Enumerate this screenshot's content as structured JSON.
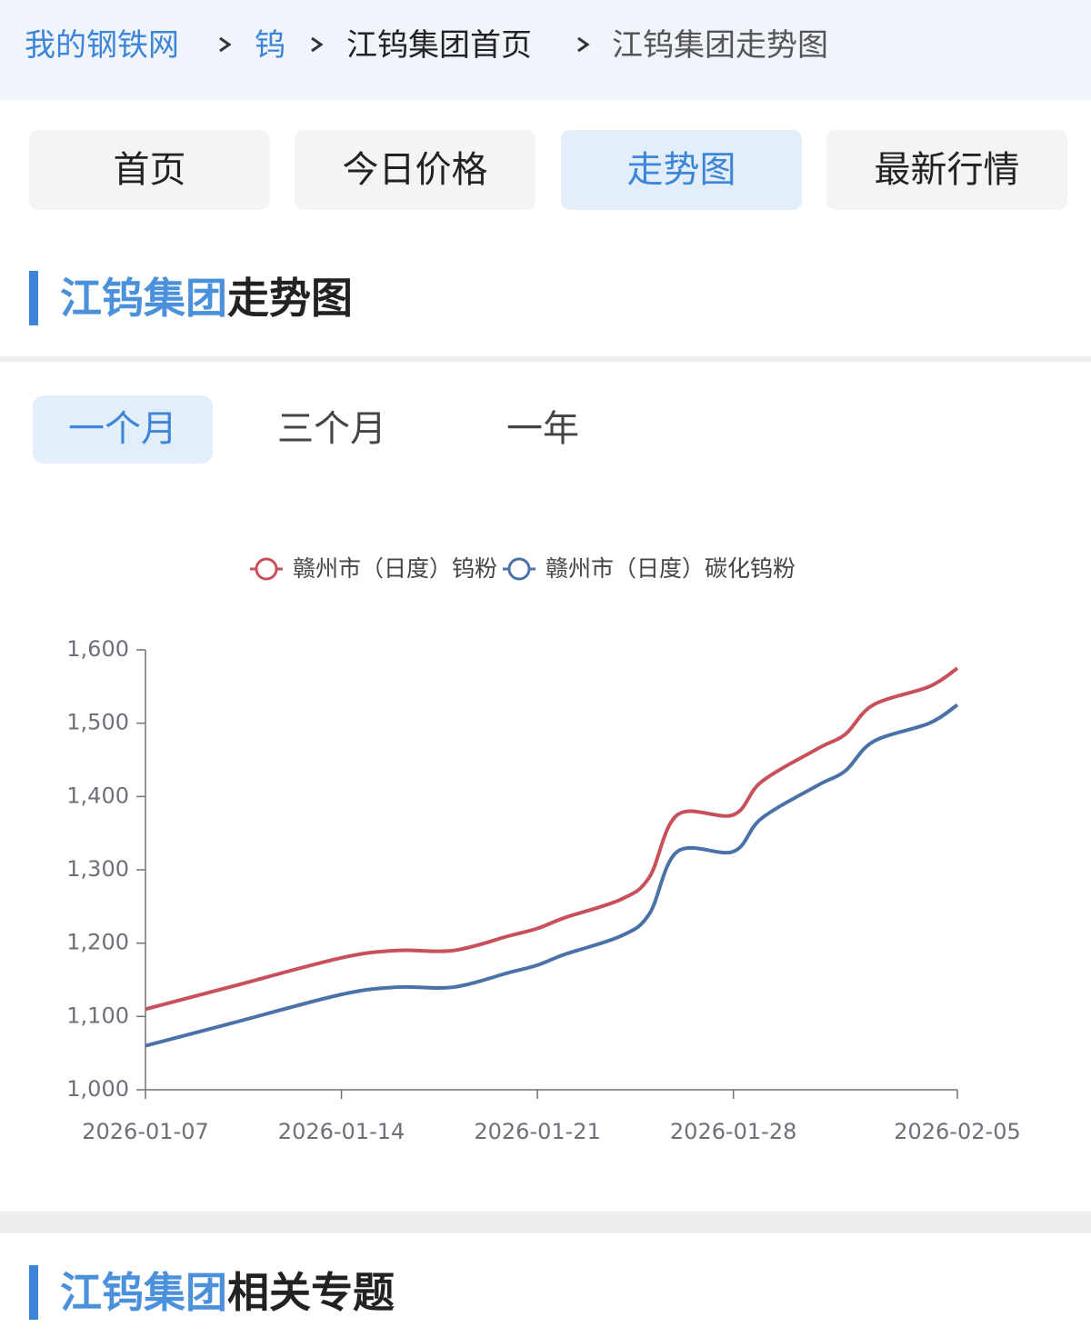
{
  "breadcrumb": [
    "我的钢铁网",
    "钨",
    "江钨集团首页",
    "江钨集团走势图"
  ],
  "nav": [
    "首页",
    "今日价格",
    "走势图",
    "最新行情"
  ],
  "section": {
    "highlight": "江钨集团",
    "rest": "走势图"
  },
  "ranges": [
    "一个月",
    "三个月",
    "一年"
  ],
  "related": {
    "highlight": "江钨集团",
    "rest": "相关专题"
  },
  "chart_data": {
    "type": "line",
    "x": [
      "2026-01-07",
      "2026-01-10",
      "2026-01-14",
      "2026-01-16",
      "2026-01-18",
      "2026-01-20",
      "2026-01-21",
      "2026-01-22",
      "2026-01-24",
      "2026-01-25",
      "2026-01-26",
      "2026-01-28",
      "2026-01-29",
      "2026-01-31",
      "2026-02-01",
      "2026-02-02",
      "2026-02-04",
      "2026-02-05"
    ],
    "series": [
      {
        "name": "赣州市（日度）钨粉",
        "color": "#c8505a",
        "values": [
          1110,
          1140,
          1180,
          1190,
          1190,
          1210,
          1220,
          1235,
          1260,
          1290,
          1375,
          1375,
          1420,
          1465,
          1485,
          1525,
          1550,
          1575
        ]
      },
      {
        "name": "赣州市（日度）碳化钨粉",
        "color": "#4a72a8",
        "values": [
          1060,
          1090,
          1130,
          1140,
          1140,
          1160,
          1170,
          1185,
          1210,
          1240,
          1325,
          1325,
          1370,
          1415,
          1435,
          1475,
          1500,
          1525
        ]
      }
    ],
    "xlim": [
      "2026-01-07",
      "2026-02-05"
    ],
    "xticks": [
      "2026-01-07",
      "2026-01-14",
      "2026-01-21",
      "2026-01-28",
      "2026-02-05"
    ],
    "ylim": [
      1000,
      1600
    ],
    "yticks": [
      {
        "value": 1000,
        "label": "1,000"
      },
      {
        "value": 1100,
        "label": "1,100"
      },
      {
        "value": 1200,
        "label": "1,200"
      },
      {
        "value": 1300,
        "label": "1,300"
      },
      {
        "value": 1400,
        "label": "1,400"
      },
      {
        "value": 1500,
        "label": "1,500"
      },
      {
        "value": 1600,
        "label": "1,600"
      }
    ],
    "legend": "top"
  }
}
